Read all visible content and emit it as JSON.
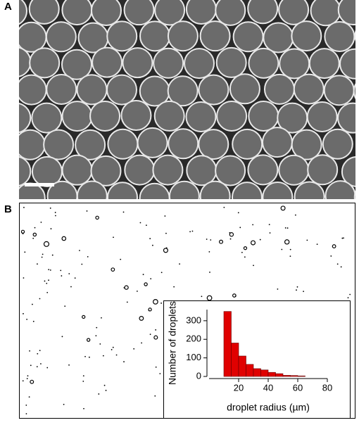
{
  "panels": [
    "A",
    "B"
  ],
  "chart_data": {
    "type": "histogram",
    "x_label": "droplet radius (µm)",
    "y_label": "Number of droplets",
    "bins": [
      10,
      15,
      20,
      25,
      30,
      35,
      40,
      45,
      50,
      55,
      60,
      65
    ],
    "values": [
      350,
      180,
      110,
      65,
      42,
      35,
      22,
      15,
      6,
      5,
      3
    ],
    "color": "#e00000",
    "xlim": [
      0,
      80
    ],
    "xticks": [
      20,
      40,
      60,
      80
    ],
    "ylim": [
      0,
      360
    ],
    "yticks": [
      0,
      100,
      200,
      300
    ]
  }
}
